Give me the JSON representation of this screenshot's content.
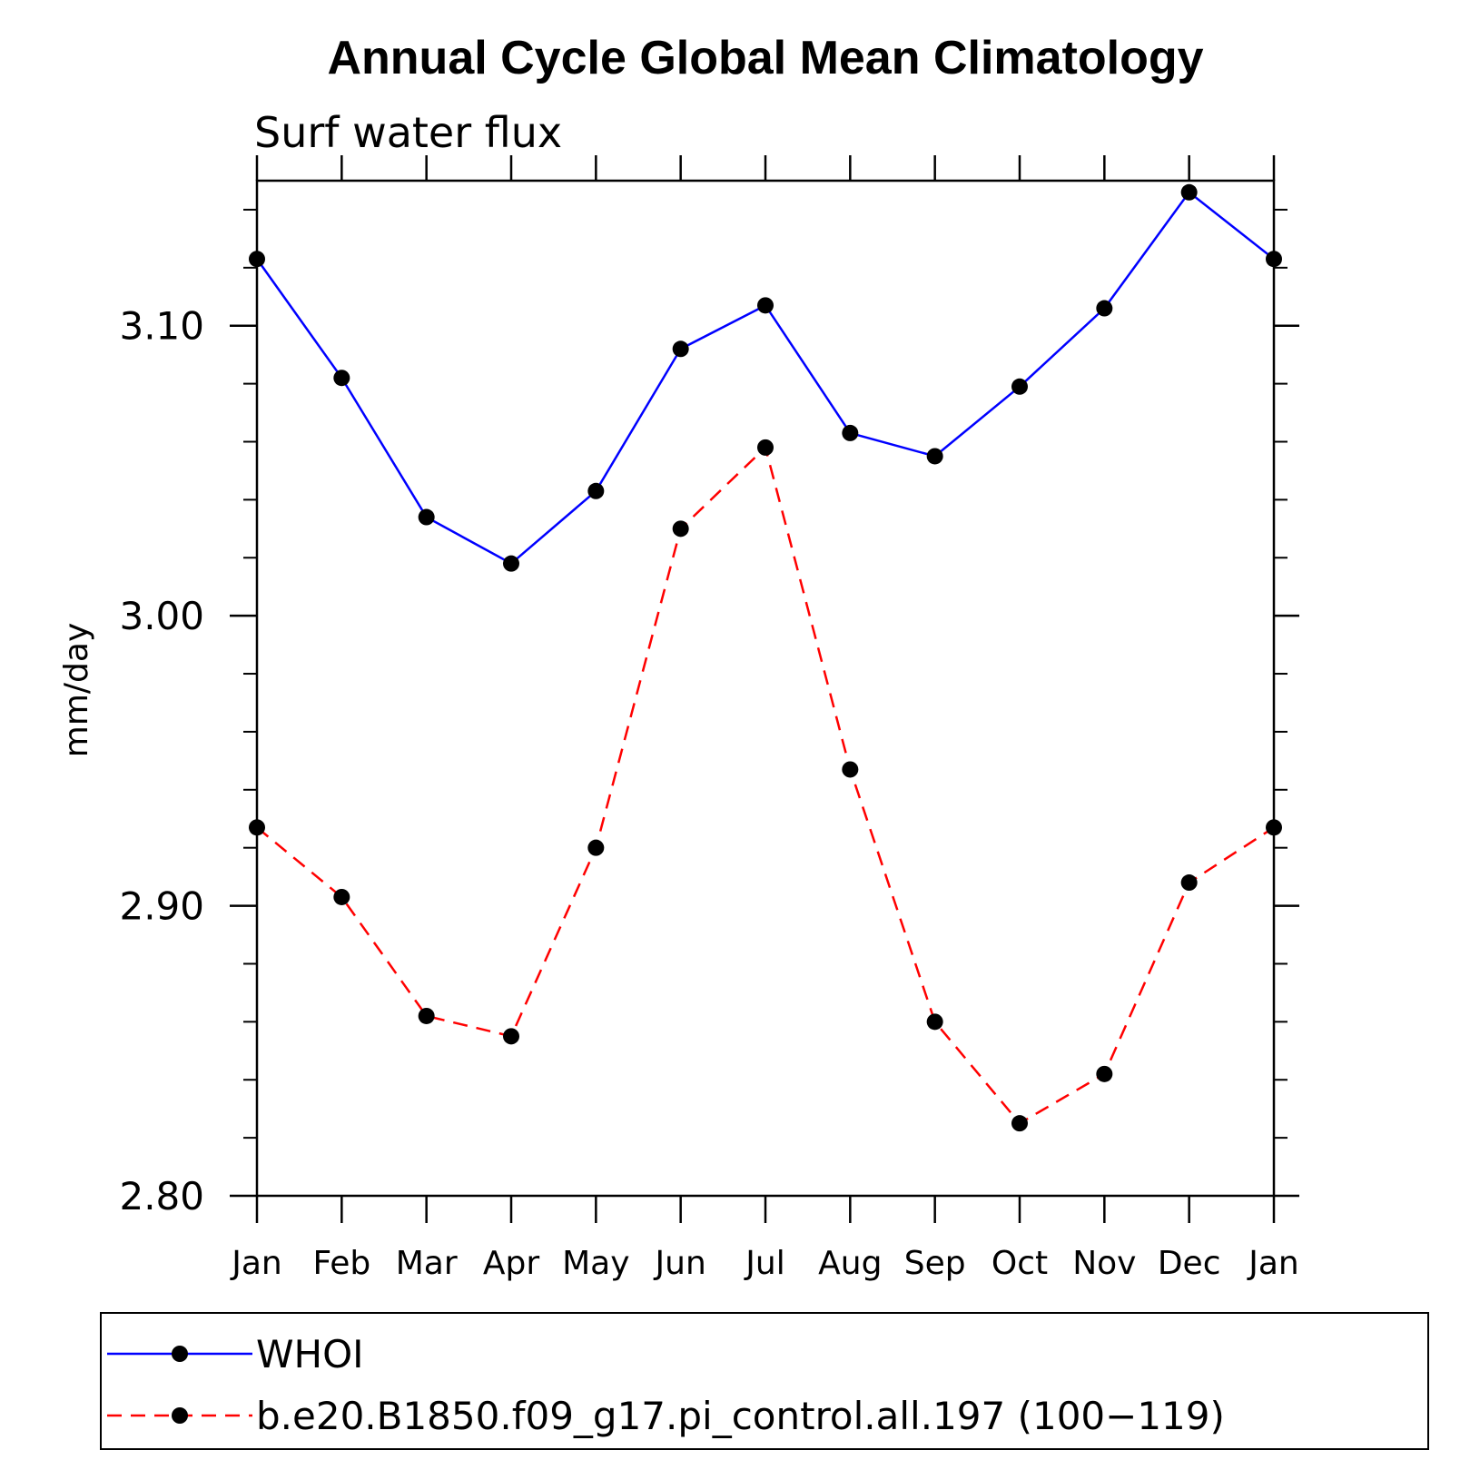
{
  "chart_data": {
    "type": "line",
    "title": "Annual Cycle Global Mean Climatology",
    "subtitle": "Surf water flux",
    "ylabel": "mm/day",
    "xlabel": "",
    "categories": [
      "Jan",
      "Feb",
      "Mar",
      "Apr",
      "May",
      "Jun",
      "Jul",
      "Aug",
      "Sep",
      "Oct",
      "Nov",
      "Dec",
      "Jan"
    ],
    "ylim": [
      2.8,
      3.15
    ],
    "yticks": [
      "2.80",
      "2.90",
      "3.00",
      "3.10"
    ],
    "grid": false,
    "legend_position": "bottom",
    "series": [
      {
        "name": "WHOI",
        "color": "#0000ff",
        "dash": "solid",
        "marker": "filled-circle",
        "values": [
          3.123,
          3.082,
          3.034,
          3.018,
          3.043,
          3.092,
          3.107,
          3.063,
          3.055,
          3.079,
          3.106,
          3.146,
          3.123
        ]
      },
      {
        "name": "b.e20.B1850.f09_g17.pi_control.all.197 (100−119)",
        "color": "#ff0000",
        "dash": "dashed",
        "marker": "filled-circle",
        "values": [
          2.927,
          2.903,
          2.862,
          2.855,
          2.92,
          3.03,
          3.058,
          2.947,
          2.86,
          2.825,
          2.842,
          2.908,
          2.927
        ]
      }
    ]
  }
}
